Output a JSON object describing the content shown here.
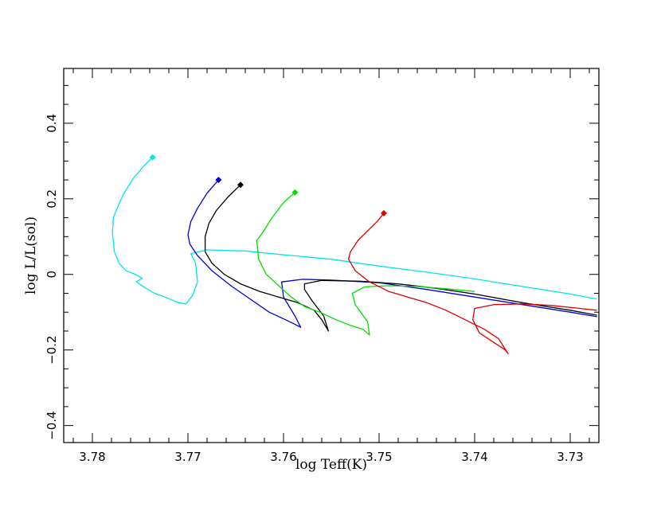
{
  "chart_data": {
    "type": "line",
    "xlabel": "log Teff(K)",
    "ylabel": "log L/L(sol)",
    "xlim": [
      3.783,
      3.727
    ],
    "ylim": [
      -0.445,
      0.545
    ],
    "x_reversed": true,
    "grid": false,
    "legend": "none",
    "x_ticks": [
      3.78,
      3.77,
      3.76,
      3.75,
      3.74,
      3.73
    ],
    "x_tick_labels": [
      "3.78",
      "3.77",
      "3.76",
      "3.75",
      "3.74",
      "3.73"
    ],
    "y_ticks": [
      -0.4,
      -0.2,
      0,
      0.2,
      0.4
    ],
    "y_tick_labels": [
      "−0.4",
      "−0.2",
      "0",
      "0.2",
      "0.4"
    ],
    "series": [
      {
        "color": "#00e5e5",
        "start": [
          3.7737,
          0.31
        ],
        "x": [
          3.7737,
          3.7745,
          3.7757,
          3.7768,
          3.7775,
          3.7778,
          3.7779,
          3.7777,
          3.7772,
          3.7765,
          3.7755,
          3.7748,
          3.7754,
          3.7745,
          3.7735,
          3.7722,
          3.771,
          3.7702,
          3.7695,
          3.769,
          3.7692,
          3.7697,
          3.768,
          3.764,
          3.76,
          3.755,
          3.75,
          3.745,
          3.74,
          3.735,
          3.73,
          3.7272
        ],
        "y": [
          0.31,
          0.29,
          0.255,
          0.21,
          0.17,
          0.15,
          0.11,
          0.06,
          0.03,
          0.01,
          0.0,
          -0.01,
          -0.02,
          -0.035,
          -0.05,
          -0.062,
          -0.075,
          -0.078,
          -0.055,
          -0.02,
          0.03,
          0.055,
          0.065,
          0.062,
          0.052,
          0.04,
          0.022,
          0.006,
          -0.012,
          -0.032,
          -0.052,
          -0.065
        ]
      },
      {
        "color": "#0000dd",
        "start": [
          3.7668,
          0.25
        ],
        "x": [
          3.7668,
          3.768,
          3.769,
          3.7697,
          3.77,
          3.7698,
          3.769,
          3.7675,
          3.7655,
          3.7635,
          3.7615,
          3.7598,
          3.7588,
          3.7582,
          3.7588,
          3.76,
          3.7602,
          3.758,
          3.755,
          3.75,
          3.745,
          3.74,
          3.735,
          3.73,
          3.7272
        ],
        "y": [
          0.25,
          0.215,
          0.175,
          0.14,
          0.105,
          0.08,
          0.05,
          0.01,
          -0.03,
          -0.065,
          -0.1,
          -0.12,
          -0.132,
          -0.14,
          -0.11,
          -0.06,
          -0.02,
          -0.013,
          -0.015,
          -0.022,
          -0.04,
          -0.06,
          -0.08,
          -0.1,
          -0.112
        ]
      },
      {
        "color": "#000000",
        "start": [
          3.7645,
          0.237
        ],
        "x": [
          3.7645,
          3.7658,
          3.767,
          3.7678,
          3.7682,
          3.7682,
          3.7675,
          3.7662,
          3.7645,
          3.7625,
          3.7605,
          3.7585,
          3.7568,
          3.756,
          3.7553,
          3.7558,
          3.757,
          3.7578,
          3.7578,
          3.756,
          3.752,
          3.748,
          3.744,
          3.74,
          3.735,
          3.73,
          3.7272
        ],
        "y": [
          0.237,
          0.205,
          0.17,
          0.135,
          0.1,
          0.06,
          0.03,
          0.0,
          -0.025,
          -0.045,
          -0.06,
          -0.075,
          -0.095,
          -0.12,
          -0.15,
          -0.11,
          -0.07,
          -0.04,
          -0.025,
          -0.016,
          -0.018,
          -0.025,
          -0.037,
          -0.052,
          -0.075,
          -0.095,
          -0.108
        ]
      },
      {
        "color": "#00dd00",
        "start": [
          3.7588,
          0.217
        ],
        "x": [
          3.7588,
          3.76,
          3.7612,
          3.7622,
          3.7628,
          3.7626,
          3.7618,
          3.7605,
          3.7592,
          3.7578,
          3.7562,
          3.7545,
          3.753,
          3.7517,
          3.751,
          3.7512,
          3.7525,
          3.7528,
          3.7515,
          3.749,
          3.746,
          3.743,
          3.74
        ],
        "y": [
          0.217,
          0.19,
          0.15,
          0.11,
          0.09,
          0.04,
          0.0,
          -0.03,
          -0.06,
          -0.085,
          -0.1,
          -0.12,
          -0.135,
          -0.145,
          -0.16,
          -0.125,
          -0.08,
          -0.05,
          -0.033,
          -0.03,
          -0.032,
          -0.038,
          -0.045
        ]
      },
      {
        "color": "#dd0000",
        "start": [
          3.7495,
          0.162
        ],
        "x": [
          3.7495,
          3.7502,
          3.7512,
          3.7522,
          3.753,
          3.7532,
          3.7525,
          3.751,
          3.749,
          3.747,
          3.745,
          3.743,
          3.741,
          3.739,
          3.7375,
          3.7365,
          3.7368,
          3.738,
          3.7395,
          3.7402,
          3.74,
          3.738,
          3.735,
          3.732,
          3.729,
          3.7272
        ],
        "y": [
          0.162,
          0.14,
          0.115,
          0.09,
          0.06,
          0.04,
          0.01,
          -0.02,
          -0.045,
          -0.06,
          -0.075,
          -0.095,
          -0.12,
          -0.145,
          -0.17,
          -0.21,
          -0.2,
          -0.18,
          -0.155,
          -0.12,
          -0.09,
          -0.08,
          -0.078,
          -0.082,
          -0.09,
          -0.095
        ]
      }
    ]
  }
}
